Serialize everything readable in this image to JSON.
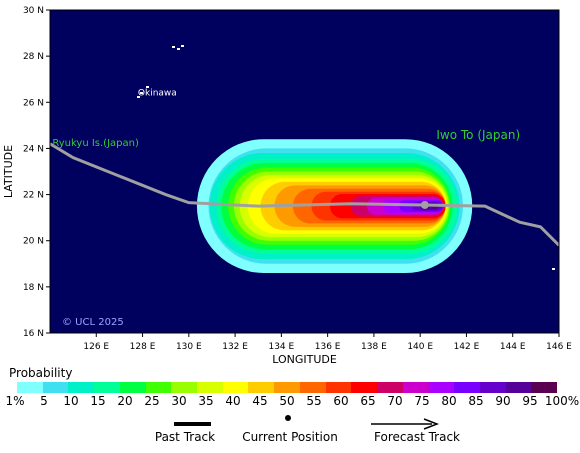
{
  "map": {
    "lon_min": 124.0,
    "lon_max": 146.0,
    "lat_min": 16.0,
    "lat_max": 30.0,
    "background_color": "#00005f",
    "land_color": "#ffffff",
    "grid": false,
    "x_ticks": [
      "126 E",
      "128 E",
      "130 E",
      "132 E",
      "134 E",
      "136 E",
      "138 E",
      "140 E",
      "142 E",
      "144 E",
      "146 E"
    ],
    "y_ticks": [
      "16 N",
      "18 N",
      "20 N",
      "22 N",
      "24 N",
      "26 N",
      "28 N",
      "30 N"
    ],
    "xlabel": "LONGITUDE",
    "ylabel": "LATITUDE",
    "copyright": "© UCL 2025",
    "labels": [
      {
        "text": "Okinawa",
        "lon": 127.8,
        "lat": 26.3,
        "color": "#ffffff"
      },
      {
        "text": "Ryukyu Is.(Japan)",
        "lon": 124.1,
        "lat": 24.1,
        "color": "#33cc33"
      },
      {
        "text": "Iwo To (Japan)",
        "lon": 140.7,
        "lat": 24.4,
        "color": "#33cc33"
      }
    ]
  },
  "track": {
    "color": "#a0a0a0",
    "current_position": {
      "lon": 140.2,
      "lat": 21.55
    },
    "points": [
      {
        "lon": 124.0,
        "lat": 24.2
      },
      {
        "lon": 125.0,
        "lat": 23.6
      },
      {
        "lon": 127.0,
        "lat": 22.8
      },
      {
        "lon": 129.0,
        "lat": 22.0
      },
      {
        "lon": 130.0,
        "lat": 21.65
      },
      {
        "lon": 133.0,
        "lat": 21.5
      },
      {
        "lon": 137.0,
        "lat": 21.6
      },
      {
        "lon": 140.2,
        "lat": 21.55
      },
      {
        "lon": 142.8,
        "lat": 21.5
      },
      {
        "lon": 144.3,
        "lat": 20.8
      },
      {
        "lon": 145.2,
        "lat": 20.6
      },
      {
        "lon": 146.0,
        "lat": 19.8
      }
    ]
  },
  "probability_field": {
    "levels": [
      {
        "p": 1,
        "color": "#80ffff",
        "w": 11.9,
        "y": 5.8,
        "cx": 136.3
      },
      {
        "p": 5,
        "color": "#40e0f0",
        "w": 11.0,
        "y": 5.0,
        "cx": 136.35
      },
      {
        "p": 10,
        "color": "#00f0c8",
        "w": 10.8,
        "y": 4.6,
        "cx": 136.3
      },
      {
        "p": 15,
        "color": "#00ff99",
        "w": 10.4,
        "y": 4.1,
        "cx": 136.4
      },
      {
        "p": 20,
        "color": "#00ff40",
        "w": 10.0,
        "y": 3.75,
        "cx": 136.4
      },
      {
        "p": 25,
        "color": "#40ff00",
        "w": 9.6,
        "y": 3.35,
        "cx": 136.5
      },
      {
        "p": 30,
        "color": "#99ff00",
        "w": 9.3,
        "y": 3.0,
        "cx": 136.6
      },
      {
        "p": 35,
        "color": "#d8ff00",
        "w": 9.0,
        "y": 2.7,
        "cx": 136.7
      },
      {
        "p": 40,
        "color": "#ffff00",
        "w": 8.6,
        "y": 2.4,
        "cx": 136.85
      },
      {
        "p": 45,
        "color": "#ffcc00",
        "w": 8.0,
        "y": 2.1,
        "cx": 137.1
      },
      {
        "p": 50,
        "color": "#ff9900",
        "w": 7.4,
        "y": 1.8,
        "cx": 137.4
      },
      {
        "p": 55,
        "color": "#ff6600",
        "w": 6.6,
        "y": 1.5,
        "cx": 137.8
      },
      {
        "p": 60,
        "color": "#ff3300",
        "w": 5.8,
        "y": 1.25,
        "cx": 138.2
      },
      {
        "p": 65,
        "color": "#ff0000",
        "w": 5.0,
        "y": 1.05,
        "cx": 138.6
      },
      {
        "p": 70,
        "color": "#cc0066",
        "w": 4.0,
        "y": 0.9,
        "cx": 139.0
      },
      {
        "p": 75,
        "color": "#cc00cc",
        "w": 3.3,
        "y": 0.75,
        "cx": 139.35
      },
      {
        "p": 80,
        "color": "#aa00ff",
        "w": 2.6,
        "y": 0.6,
        "cx": 139.7
      },
      {
        "p": 85,
        "color": "#7700ff",
        "w": 1.9,
        "y": 0.5,
        "cx": 140.05
      },
      {
        "p": 90,
        "color": "#6600cc",
        "w": 1.3,
        "y": 0.4,
        "cx": 140.3
      },
      {
        "p": 95,
        "color": "#550099",
        "w": 0.8,
        "y": 0.3,
        "cx": 140.4
      }
    ],
    "field_center_lat": 21.5
  },
  "legend": {
    "title": "Probability",
    "colors": [
      "#80ffff",
      "#40e0f0",
      "#00f0c8",
      "#00ff99",
      "#00ff40",
      "#40ff00",
      "#99ff00",
      "#d8ff00",
      "#ffff00",
      "#ffcc00",
      "#ff9900",
      "#ff6600",
      "#ff3300",
      "#ff0000",
      "#cc0066",
      "#cc00cc",
      "#aa00ff",
      "#7700ff",
      "#6600cc",
      "#550099",
      "#5a0050"
    ],
    "labels": [
      "1%",
      "5",
      "10",
      "15",
      "20",
      "25",
      "30",
      "35",
      "40",
      "45",
      "50",
      "55",
      "60",
      "65",
      "70",
      "75",
      "80",
      "85",
      "90",
      "95",
      "100%"
    ],
    "past_track": "Past Track",
    "current_position": "Current Position",
    "forecast_track": "Forecast Track"
  }
}
